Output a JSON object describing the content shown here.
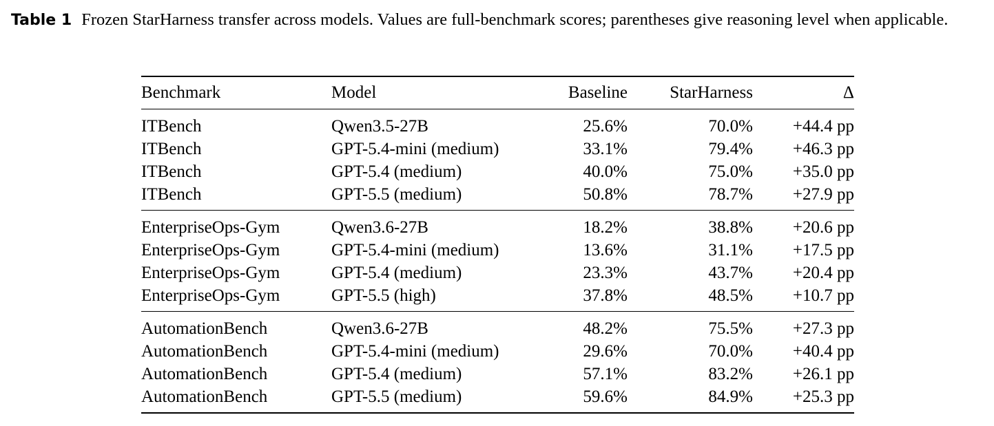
{
  "caption": {
    "label": "Table 1",
    "text": "Frozen StarHarness transfer across models. Values are full-benchmark scores; parentheses give reasoning level when applicable."
  },
  "table": {
    "headers": [
      "Benchmark",
      "Model",
      "Baseline",
      "StarHarness",
      "Δ"
    ],
    "groups": [
      {
        "rows": [
          [
            "ITBench",
            "Qwen3.5-27B",
            "25.6%",
            "70.0%",
            "+44.4 pp"
          ],
          [
            "ITBench",
            "GPT-5.4-mini (medium)",
            "33.1%",
            "79.4%",
            "+46.3 pp"
          ],
          [
            "ITBench",
            "GPT-5.4 (medium)",
            "40.0%",
            "75.0%",
            "+35.0 pp"
          ],
          [
            "ITBench",
            "GPT-5.5 (medium)",
            "50.8%",
            "78.7%",
            "+27.9 pp"
          ]
        ]
      },
      {
        "rows": [
          [
            "EnterpriseOps-Gym",
            "Qwen3.6-27B",
            "18.2%",
            "38.8%",
            "+20.6 pp"
          ],
          [
            "EnterpriseOps-Gym",
            "GPT-5.4-mini (medium)",
            "13.6%",
            "31.1%",
            "+17.5 pp"
          ],
          [
            "EnterpriseOps-Gym",
            "GPT-5.4 (medium)",
            "23.3%",
            "43.7%",
            "+20.4 pp"
          ],
          [
            "EnterpriseOps-Gym",
            "GPT-5.5 (high)",
            "37.8%",
            "48.5%",
            "+10.7 pp"
          ]
        ]
      },
      {
        "rows": [
          [
            "AutomationBench",
            "Qwen3.6-27B",
            "48.2%",
            "75.5%",
            "+27.3 pp"
          ],
          [
            "AutomationBench",
            "GPT-5.4-mini (medium)",
            "29.6%",
            "70.0%",
            "+40.4 pp"
          ],
          [
            "AutomationBench",
            "GPT-5.4 (medium)",
            "57.1%",
            "83.2%",
            "+26.1 pp"
          ],
          [
            "AutomationBench",
            "GPT-5.5 (medium)",
            "59.6%",
            "84.9%",
            "+25.3 pp"
          ]
        ]
      }
    ]
  }
}
